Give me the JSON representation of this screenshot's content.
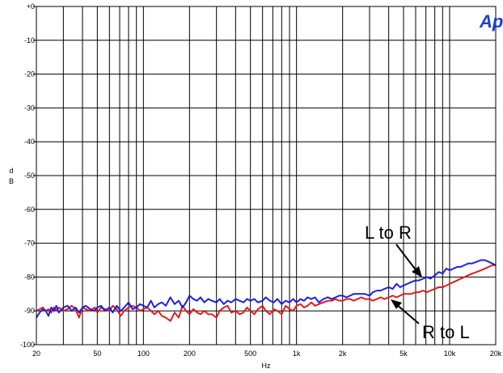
{
  "chart_data": {
    "type": "line",
    "xlabel": "Hz",
    "ylabel": [
      "d",
      "B"
    ],
    "x_scale": "log",
    "xlim": [
      20,
      20000
    ],
    "ylim": [
      -100,
      0
    ],
    "grid": true,
    "x_ticks": [
      {
        "value": 20,
        "label": "20"
      },
      {
        "value": 50,
        "label": "50"
      },
      {
        "value": 100,
        "label": "100"
      },
      {
        "value": 200,
        "label": "200"
      },
      {
        "value": 500,
        "label": "500"
      },
      {
        "value": 1000,
        "label": "1k"
      },
      {
        "value": 2000,
        "label": "2k"
      },
      {
        "value": 5000,
        "label": "5k"
      },
      {
        "value": 10000,
        "label": "10k"
      },
      {
        "value": 20000,
        "label": "20k"
      }
    ],
    "y_ticks": [
      {
        "value": 0,
        "label": "+0"
      },
      {
        "value": -10,
        "label": "-10"
      },
      {
        "value": -20,
        "label": "-20"
      },
      {
        "value": -30,
        "label": "-30"
      },
      {
        "value": -40,
        "label": "-40"
      },
      {
        "value": -50,
        "label": "-50"
      },
      {
        "value": -60,
        "label": "-60"
      },
      {
        "value": -70,
        "label": "-70"
      },
      {
        "value": -80,
        "label": "-80"
      },
      {
        "value": -90,
        "label": "-90"
      },
      {
        "value": -100,
        "label": "-100"
      }
    ],
    "series": [
      {
        "name": "L to R",
        "color": "#1f1fe0",
        "points": [
          [
            20,
            -92
          ],
          [
            21,
            -90.5
          ],
          [
            22,
            -89.5
          ],
          [
            23,
            -90
          ],
          [
            24,
            -91.5
          ],
          [
            25,
            -89
          ],
          [
            26,
            -90
          ],
          [
            27,
            -88.5
          ],
          [
            28,
            -90.5
          ],
          [
            30,
            -89
          ],
          [
            32,
            -88.5
          ],
          [
            34,
            -90
          ],
          [
            36,
            -89
          ],
          [
            38,
            -90.5
          ],
          [
            40,
            -89
          ],
          [
            42,
            -88.5
          ],
          [
            45,
            -89.5
          ],
          [
            48,
            -90
          ],
          [
            50,
            -89
          ],
          [
            53,
            -88.5
          ],
          [
            56,
            -90
          ],
          [
            60,
            -89
          ],
          [
            63,
            -90.5
          ],
          [
            67,
            -88.5
          ],
          [
            71,
            -90
          ],
          [
            75,
            -89
          ],
          [
            80,
            -87.5
          ],
          [
            85,
            -89.5
          ],
          [
            90,
            -89
          ],
          [
            95,
            -88
          ],
          [
            100,
            -88.5
          ],
          [
            106,
            -89
          ],
          [
            112,
            -87
          ],
          [
            118,
            -89
          ],
          [
            125,
            -88
          ],
          [
            132,
            -87.5
          ],
          [
            140,
            -88.5
          ],
          [
            150,
            -86
          ],
          [
            160,
            -88
          ],
          [
            170,
            -87
          ],
          [
            180,
            -89
          ],
          [
            190,
            -87.5
          ],
          [
            200,
            -85.5
          ],
          [
            212,
            -86.5
          ],
          [
            224,
            -87
          ],
          [
            236,
            -86
          ],
          [
            250,
            -87.5
          ],
          [
            265,
            -86.5
          ],
          [
            280,
            -87
          ],
          [
            300,
            -87.5
          ],
          [
            315,
            -86.5
          ],
          [
            335,
            -88
          ],
          [
            355,
            -87
          ],
          [
            375,
            -87.5
          ],
          [
            400,
            -86.5
          ],
          [
            425,
            -87
          ],
          [
            450,
            -87.5
          ],
          [
            475,
            -86.5
          ],
          [
            500,
            -87
          ],
          [
            530,
            -86.5
          ],
          [
            560,
            -87.5
          ],
          [
            600,
            -87
          ],
          [
            630,
            -86
          ],
          [
            670,
            -87
          ],
          [
            710,
            -87.5
          ],
          [
            750,
            -86.5
          ],
          [
            800,
            -88
          ],
          [
            850,
            -87
          ],
          [
            900,
            -87.5
          ],
          [
            950,
            -86.5
          ],
          [
            1000,
            -87.5
          ],
          [
            1060,
            -86.5
          ],
          [
            1120,
            -87
          ],
          [
            1180,
            -86
          ],
          [
            1250,
            -86.5
          ],
          [
            1320,
            -86
          ],
          [
            1400,
            -87.5
          ],
          [
            1500,
            -86.5
          ],
          [
            1600,
            -86
          ],
          [
            1700,
            -86.5
          ],
          [
            1800,
            -86
          ],
          [
            1900,
            -85.5
          ],
          [
            2000,
            -85.5
          ],
          [
            2120,
            -86
          ],
          [
            2240,
            -85.5
          ],
          [
            2360,
            -85
          ],
          [
            2500,
            -85
          ],
          [
            2650,
            -85
          ],
          [
            2800,
            -85
          ],
          [
            3000,
            -85.5
          ],
          [
            3150,
            -84.5
          ],
          [
            3350,
            -84
          ],
          [
            3550,
            -84
          ],
          [
            3750,
            -83.5
          ],
          [
            4000,
            -83
          ],
          [
            4250,
            -83.5
          ],
          [
            4500,
            -82
          ],
          [
            4750,
            -83
          ],
          [
            5000,
            -82.5
          ],
          [
            5300,
            -82
          ],
          [
            5600,
            -81.5
          ],
          [
            6000,
            -81
          ],
          [
            6300,
            -81
          ],
          [
            6700,
            -80.5
          ],
          [
            7100,
            -80
          ],
          [
            7500,
            -80.5
          ],
          [
            8000,
            -79.5
          ],
          [
            8500,
            -78.5
          ],
          [
            9000,
            -79
          ],
          [
            9500,
            -77.5
          ],
          [
            10000,
            -78
          ],
          [
            10600,
            -77.5
          ],
          [
            11200,
            -77
          ],
          [
            11800,
            -77
          ],
          [
            12500,
            -76.5
          ],
          [
            13200,
            -76
          ],
          [
            14000,
            -76
          ],
          [
            15000,
            -75.5
          ],
          [
            16000,
            -75
          ],
          [
            17000,
            -75
          ],
          [
            18000,
            -75.5
          ],
          [
            19000,
            -76
          ],
          [
            20000,
            -76.5
          ]
        ]
      },
      {
        "name": "R to L",
        "color": "#e01c1c",
        "points": [
          [
            20,
            -90
          ],
          [
            21,
            -89.5
          ],
          [
            22,
            -89
          ],
          [
            23,
            -90
          ],
          [
            24,
            -89.5
          ],
          [
            25,
            -90.5
          ],
          [
            26,
            -89
          ],
          [
            27,
            -90
          ],
          [
            28,
            -89
          ],
          [
            30,
            -90
          ],
          [
            32,
            -89.5
          ],
          [
            34,
            -88.5
          ],
          [
            36,
            -89.5
          ],
          [
            38,
            -92
          ],
          [
            40,
            -89
          ],
          [
            42,
            -89.5
          ],
          [
            45,
            -90
          ],
          [
            48,
            -89
          ],
          [
            50,
            -90.5
          ],
          [
            53,
            -89
          ],
          [
            56,
            -89.5
          ],
          [
            60,
            -90
          ],
          [
            63,
            -88.5
          ],
          [
            67,
            -89.5
          ],
          [
            71,
            -91.5
          ],
          [
            75,
            -90
          ],
          [
            80,
            -89
          ],
          [
            85,
            -88.5
          ],
          [
            90,
            -89
          ],
          [
            95,
            -90
          ],
          [
            100,
            -89.5
          ],
          [
            106,
            -89
          ],
          [
            112,
            -90
          ],
          [
            118,
            -91
          ],
          [
            125,
            -90
          ],
          [
            132,
            -91.5
          ],
          [
            140,
            -92
          ],
          [
            150,
            -93
          ],
          [
            160,
            -90.5
          ],
          [
            170,
            -92
          ],
          [
            180,
            -88.5
          ],
          [
            190,
            -90
          ],
          [
            200,
            -91
          ],
          [
            212,
            -89.5
          ],
          [
            224,
            -90.5
          ],
          [
            236,
            -91
          ],
          [
            250,
            -90
          ],
          [
            265,
            -91
          ],
          [
            280,
            -91
          ],
          [
            300,
            -92
          ],
          [
            315,
            -90
          ],
          [
            335,
            -89
          ],
          [
            355,
            -88.5
          ],
          [
            375,
            -90.5
          ],
          [
            400,
            -90
          ],
          [
            425,
            -91
          ],
          [
            450,
            -90.5
          ],
          [
            475,
            -89
          ],
          [
            500,
            -90
          ],
          [
            530,
            -91
          ],
          [
            560,
            -89.5
          ],
          [
            600,
            -88.5
          ],
          [
            630,
            -90
          ],
          [
            670,
            -91
          ],
          [
            710,
            -89.5
          ],
          [
            750,
            -90
          ],
          [
            800,
            -91
          ],
          [
            850,
            -88.5
          ],
          [
            900,
            -89.5
          ],
          [
            950,
            -90
          ],
          [
            1000,
            -88.5
          ],
          [
            1060,
            -88
          ],
          [
            1120,
            -89
          ],
          [
            1180,
            -88.5
          ],
          [
            1250,
            -87.5
          ],
          [
            1320,
            -88.5
          ],
          [
            1400,
            -88
          ],
          [
            1500,
            -87.5
          ],
          [
            1600,
            -87
          ],
          [
            1700,
            -87
          ],
          [
            1800,
            -86.5
          ],
          [
            1900,
            -87
          ],
          [
            2000,
            -87
          ],
          [
            2120,
            -86.5
          ],
          [
            2240,
            -86.5
          ],
          [
            2360,
            -87
          ],
          [
            2500,
            -86.5
          ],
          [
            2650,
            -86
          ],
          [
            2800,
            -86.5
          ],
          [
            3000,
            -86.5
          ],
          [
            3150,
            -87
          ],
          [
            3350,
            -86.5
          ],
          [
            3550,
            -86
          ],
          [
            3750,
            -86.5
          ],
          [
            4000,
            -86
          ],
          [
            4250,
            -85.5
          ],
          [
            4500,
            -86
          ],
          [
            4750,
            -85.5
          ],
          [
            5000,
            -85
          ],
          [
            5300,
            -85
          ],
          [
            5600,
            -85
          ],
          [
            6000,
            -84.5
          ],
          [
            6300,
            -84.5
          ],
          [
            6700,
            -84
          ],
          [
            7100,
            -84.5
          ],
          [
            7500,
            -84
          ],
          [
            8000,
            -83.5
          ],
          [
            8500,
            -83
          ],
          [
            9000,
            -83
          ],
          [
            9500,
            -82.5
          ],
          [
            10000,
            -82
          ],
          [
            10600,
            -81.5
          ],
          [
            11200,
            -81
          ],
          [
            11800,
            -80.5
          ],
          [
            12500,
            -80
          ],
          [
            13200,
            -79.5
          ],
          [
            14000,
            -79
          ],
          [
            15000,
            -78.5
          ],
          [
            16000,
            -78
          ],
          [
            17000,
            -77.5
          ],
          [
            18000,
            -77
          ],
          [
            19000,
            -76.5
          ],
          [
            20000,
            -76.5
          ]
        ]
      }
    ],
    "annotations": [
      {
        "text": "L to R",
        "arrow_to": [
          8500,
          -79
        ]
      },
      {
        "text": "R to L",
        "arrow_to": [
          4600,
          -85.5
        ]
      }
    ],
    "logo": "Ap"
  }
}
